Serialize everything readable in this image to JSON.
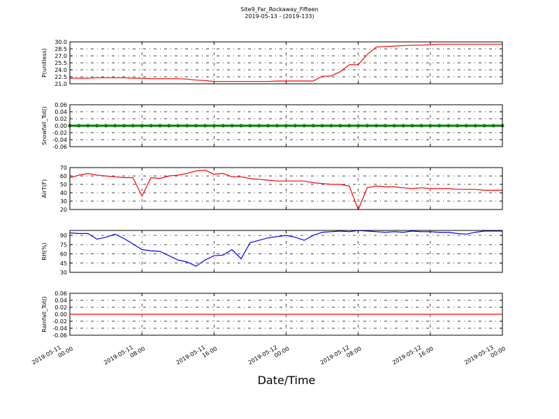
{
  "chart_data": [
    {
      "type": "line",
      "title": "Site9_Far_Rockaway_Fifteen",
      "subtitle": "2019-05-13 - (2019-133)",
      "ylabel": "P(unitless)",
      "color": "#ff0000",
      "grid": true,
      "x": [
        "2019-05-11 00:00",
        "2019-05-11 01:00",
        "2019-05-11 02:00",
        "2019-05-11 03:00",
        "2019-05-11 04:00",
        "2019-05-11 05:00",
        "2019-05-11 06:00",
        "2019-05-11 07:00",
        "2019-05-11 08:00",
        "2019-05-11 09:00",
        "2019-05-11 10:00",
        "2019-05-11 11:00",
        "2019-05-11 12:00",
        "2019-05-11 13:00",
        "2019-05-11 14:00",
        "2019-05-11 15:00",
        "2019-05-11 16:00",
        "2019-05-11 17:00",
        "2019-05-11 18:00",
        "2019-05-11 19:00",
        "2019-05-11 20:00",
        "2019-05-11 21:00",
        "2019-05-11 22:00",
        "2019-05-11 23:00",
        "2019-05-12 00:00",
        "2019-05-12 01:00",
        "2019-05-12 02:00",
        "2019-05-12 03:00",
        "2019-05-12 04:00",
        "2019-05-12 05:00",
        "2019-05-12 06:00",
        "2019-05-12 07:00",
        "2019-05-12 08:00",
        "2019-05-12 09:00",
        "2019-05-12 10:00",
        "2019-05-12 11:00",
        "2019-05-12 12:00",
        "2019-05-12 13:00",
        "2019-05-12 14:00",
        "2019-05-12 15:00",
        "2019-05-12 16:00",
        "2019-05-12 17:00",
        "2019-05-12 18:00",
        "2019-05-12 19:00",
        "2019-05-12 20:00",
        "2019-05-12 21:00",
        "2019-05-12 22:00",
        "2019-05-12 23:00",
        "2019-05-13 00:00"
      ],
      "values": [
        22.2,
        22.2,
        22.2,
        22.3,
        22.3,
        22.3,
        22.3,
        22.2,
        22.2,
        22.1,
        22.1,
        22.1,
        22.1,
        22.0,
        21.8,
        21.7,
        21.5,
        21.5,
        21.5,
        21.5,
        21.5,
        21.5,
        21.5,
        21.6,
        21.6,
        21.6,
        21.6,
        21.6,
        22.6,
        22.7,
        23.6,
        25.1,
        25.1,
        27.3,
        28.9,
        29.0,
        29.1,
        29.2,
        29.3,
        29.3,
        29.4,
        29.5,
        29.5,
        29.5,
        29.5,
        29.5,
        29.5,
        29.5,
        29.5
      ],
      "xlim": [
        "2019-05-11 00:00",
        "2019-05-13 00:00"
      ],
      "xticks": [
        "2019-05-11 00:00",
        "2019-05-11 08:00",
        "2019-05-11 16:00",
        "2019-05-12 00:00",
        "2019-05-12 08:00",
        "2019-05-12 16:00",
        "2019-05-13 00:00"
      ],
      "ylim": [
        21,
        30
      ],
      "yticks": [
        {
          "value": 21,
          "label": "21.0"
        },
        22.5,
        {
          "value": 24,
          "label": "24.0"
        },
        25.5,
        {
          "value": 27,
          "label": "27.0"
        },
        28.5,
        {
          "value": 30,
          "label": "30.0"
        }
      ]
    },
    {
      "type": "scatter",
      "ylabel": "Snowfall_Tot()",
      "color": "#008000",
      "grid": true,
      "x": [
        "2019-05-11 00:00",
        "2019-05-11 01:00",
        "2019-05-11 02:00",
        "2019-05-11 03:00",
        "2019-05-11 04:00",
        "2019-05-11 05:00",
        "2019-05-11 06:00",
        "2019-05-11 07:00",
        "2019-05-11 08:00",
        "2019-05-11 09:00",
        "2019-05-11 10:00",
        "2019-05-11 11:00",
        "2019-05-11 12:00",
        "2019-05-11 13:00",
        "2019-05-11 14:00",
        "2019-05-11 15:00",
        "2019-05-11 16:00",
        "2019-05-11 17:00",
        "2019-05-11 18:00",
        "2019-05-11 19:00",
        "2019-05-11 20:00",
        "2019-05-11 21:00",
        "2019-05-11 22:00",
        "2019-05-11 23:00",
        "2019-05-12 00:00",
        "2019-05-12 01:00",
        "2019-05-12 02:00",
        "2019-05-12 03:00",
        "2019-05-12 04:00",
        "2019-05-12 05:00",
        "2019-05-12 06:00",
        "2019-05-12 07:00",
        "2019-05-12 08:00",
        "2019-05-12 09:00",
        "2019-05-12 10:00",
        "2019-05-12 11:00",
        "2019-05-12 12:00",
        "2019-05-12 13:00",
        "2019-05-12 14:00",
        "2019-05-12 15:00",
        "2019-05-12 16:00",
        "2019-05-12 17:00",
        "2019-05-12 18:00",
        "2019-05-12 19:00",
        "2019-05-12 20:00",
        "2019-05-12 21:00",
        "2019-05-12 22:00",
        "2019-05-12 23:00",
        "2019-05-13 00:00"
      ],
      "values": [
        0,
        0,
        0,
        0,
        0,
        0,
        0,
        0,
        0,
        0,
        0,
        0,
        0,
        0,
        0,
        0,
        0,
        0,
        0,
        0,
        0,
        0,
        0,
        0,
        0,
        0,
        0,
        0,
        0,
        0,
        0,
        0,
        0,
        0,
        0,
        0,
        0,
        0,
        0,
        0,
        0,
        0,
        0,
        0,
        0,
        0,
        0,
        0,
        0
      ],
      "xlim": [
        "2019-05-11 00:00",
        "2019-05-13 00:00"
      ],
      "xticks": [
        "2019-05-11 00:00",
        "2019-05-11 08:00",
        "2019-05-11 16:00",
        "2019-05-12 00:00",
        "2019-05-12 08:00",
        "2019-05-12 16:00",
        "2019-05-13 00:00"
      ],
      "ylim": [
        -0.06,
        0.06
      ],
      "yticks": [
        -0.06,
        -0.04,
        -0.02,
        {
          "value": 0,
          "label": "0.00"
        },
        0.02,
        0.04,
        0.06
      ]
    },
    {
      "type": "line",
      "ylabel": "AirT(F)",
      "color": "#ff0000",
      "grid": true,
      "x": [
        "2019-05-11 00:00",
        "2019-05-11 01:00",
        "2019-05-11 02:00",
        "2019-05-11 03:00",
        "2019-05-11 04:00",
        "2019-05-11 05:00",
        "2019-05-11 06:00",
        "2019-05-11 07:00",
        "2019-05-11 08:00",
        "2019-05-11 09:00",
        "2019-05-11 10:00",
        "2019-05-11 11:00",
        "2019-05-11 12:00",
        "2019-05-11 13:00",
        "2019-05-11 14:00",
        "2019-05-11 15:00",
        "2019-05-11 16:00",
        "2019-05-11 17:00",
        "2019-05-11 18:00",
        "2019-05-11 19:00",
        "2019-05-11 20:00",
        "2019-05-11 21:00",
        "2019-05-11 22:00",
        "2019-05-11 23:00",
        "2019-05-12 00:00",
        "2019-05-12 01:00",
        "2019-05-12 02:00",
        "2019-05-12 03:00",
        "2019-05-12 04:00",
        "2019-05-12 05:00",
        "2019-05-12 06:00",
        "2019-05-12 07:00",
        "2019-05-12 08:00",
        "2019-05-12 09:00",
        "2019-05-12 10:00",
        "2019-05-12 11:00",
        "2019-05-12 12:00",
        "2019-05-12 13:00",
        "2019-05-12 14:00",
        "2019-05-12 15:00",
        "2019-05-12 16:00",
        "2019-05-12 17:00",
        "2019-05-12 18:00",
        "2019-05-12 19:00",
        "2019-05-12 20:00",
        "2019-05-12 21:00",
        "2019-05-12 22:00",
        "2019-05-12 23:00",
        "2019-05-13 00:00"
      ],
      "values": [
        58,
        61,
        63,
        61,
        60,
        59,
        58,
        58,
        36,
        58,
        57,
        60,
        61,
        63,
        66,
        67,
        62,
        63,
        59,
        59,
        57,
        56,
        55,
        54,
        54,
        54,
        54,
        52,
        51,
        50,
        50,
        48,
        20,
        46,
        48,
        47,
        47,
        46,
        45,
        46,
        45,
        45,
        45,
        44,
        44,
        44,
        43,
        43,
        43
      ],
      "xlim": [
        "2019-05-11 00:00",
        "2019-05-13 00:00"
      ],
      "xticks": [
        "2019-05-11 00:00",
        "2019-05-11 08:00",
        "2019-05-11 16:00",
        "2019-05-12 00:00",
        "2019-05-12 08:00",
        "2019-05-12 16:00",
        "2019-05-13 00:00"
      ],
      "ylim": [
        20,
        70
      ],
      "yticks": [
        20,
        30,
        40,
        50,
        60,
        70
      ]
    },
    {
      "type": "line",
      "ylabel": "RH(%)",
      "color": "#0000ff",
      "grid": true,
      "x": [
        "2019-05-11 00:00",
        "2019-05-11 01:00",
        "2019-05-11 02:00",
        "2019-05-11 03:00",
        "2019-05-11 04:00",
        "2019-05-11 05:00",
        "2019-05-11 06:00",
        "2019-05-11 07:00",
        "2019-05-11 08:00",
        "2019-05-11 09:00",
        "2019-05-11 10:00",
        "2019-05-11 11:00",
        "2019-05-11 12:00",
        "2019-05-11 13:00",
        "2019-05-11 14:00",
        "2019-05-11 15:00",
        "2019-05-11 16:00",
        "2019-05-11 17:00",
        "2019-05-11 18:00",
        "2019-05-11 19:00",
        "2019-05-11 20:00",
        "2019-05-11 21:00",
        "2019-05-11 22:00",
        "2019-05-11 23:00",
        "2019-05-12 00:00",
        "2019-05-12 01:00",
        "2019-05-12 02:00",
        "2019-05-12 03:00",
        "2019-05-12 04:00",
        "2019-05-12 05:00",
        "2019-05-12 06:00",
        "2019-05-12 07:00",
        "2019-05-12 08:00",
        "2019-05-12 09:00",
        "2019-05-12 10:00",
        "2019-05-12 11:00",
        "2019-05-12 12:00",
        "2019-05-12 13:00",
        "2019-05-12 14:00",
        "2019-05-12 15:00",
        "2019-05-12 16:00",
        "2019-05-12 17:00",
        "2019-05-12 18:00",
        "2019-05-12 19:00",
        "2019-05-12 20:00",
        "2019-05-12 21:00",
        "2019-05-12 22:00",
        "2019-05-12 23:00",
        "2019-05-13 00:00"
      ],
      "values": [
        94,
        93,
        93,
        84,
        87,
        92,
        85,
        76,
        67,
        65,
        64,
        57,
        50,
        47,
        40,
        50,
        57,
        58,
        67,
        52,
        78,
        82,
        86,
        88,
        90,
        87,
        82,
        90,
        95,
        96,
        97,
        96,
        98,
        97,
        96,
        95,
        96,
        95,
        97,
        96,
        96,
        95,
        95,
        93,
        92,
        95,
        97,
        97,
        97
      ],
      "xlim": [
        "2019-05-11 00:00",
        "2019-05-13 00:00"
      ],
      "xticks": [
        "2019-05-11 00:00",
        "2019-05-11 08:00",
        "2019-05-11 16:00",
        "2019-05-12 00:00",
        "2019-05-12 08:00",
        "2019-05-12 16:00",
        "2019-05-13 00:00"
      ],
      "ylim": [
        30,
        98
      ],
      "yticks": [
        30,
        45,
        60,
        75,
        90
      ]
    },
    {
      "type": "line",
      "ylabel": "Rainfall_Tot()",
      "xlabel": "Date/Time",
      "color": "#ff0000",
      "grid": true,
      "x": [
        "2019-05-11 00:00",
        "2019-05-11 01:00",
        "2019-05-11 02:00",
        "2019-05-11 03:00",
        "2019-05-11 04:00",
        "2019-05-11 05:00",
        "2019-05-11 06:00",
        "2019-05-11 07:00",
        "2019-05-11 08:00",
        "2019-05-11 09:00",
        "2019-05-11 10:00",
        "2019-05-11 11:00",
        "2019-05-11 12:00",
        "2019-05-11 13:00",
        "2019-05-11 14:00",
        "2019-05-11 15:00",
        "2019-05-11 16:00",
        "2019-05-11 17:00",
        "2019-05-11 18:00",
        "2019-05-11 19:00",
        "2019-05-11 20:00",
        "2019-05-11 21:00",
        "2019-05-11 22:00",
        "2019-05-11 23:00",
        "2019-05-12 00:00",
        "2019-05-12 01:00",
        "2019-05-12 02:00",
        "2019-05-12 03:00",
        "2019-05-12 04:00",
        "2019-05-12 05:00",
        "2019-05-12 06:00",
        "2019-05-12 07:00",
        "2019-05-12 08:00",
        "2019-05-12 09:00",
        "2019-05-12 10:00",
        "2019-05-12 11:00",
        "2019-05-12 12:00",
        "2019-05-12 13:00",
        "2019-05-12 14:00",
        "2019-05-12 15:00",
        "2019-05-12 16:00",
        "2019-05-12 17:00",
        "2019-05-12 18:00",
        "2019-05-12 19:00",
        "2019-05-12 20:00",
        "2019-05-12 21:00",
        "2019-05-12 22:00",
        "2019-05-12 23:00",
        "2019-05-13 00:00"
      ],
      "values": [
        0,
        0,
        0,
        0,
        0,
        0,
        0,
        0,
        0,
        0,
        0,
        0,
        0,
        0,
        0,
        0,
        0,
        0,
        0,
        0,
        0,
        0,
        0,
        0,
        0,
        0,
        0,
        0,
        0,
        0,
        0,
        0,
        0,
        0,
        0,
        0,
        0,
        0,
        0,
        0,
        0,
        0,
        0,
        0,
        0,
        0,
        0,
        0,
        0
      ],
      "xlim": [
        "2019-05-11 00:00",
        "2019-05-13 00:00"
      ],
      "xticks": [
        "2019-05-11 00:00",
        "2019-05-11 08:00",
        "2019-05-11 16:00",
        "2019-05-12 00:00",
        "2019-05-12 08:00",
        "2019-05-12 16:00",
        "2019-05-13 00:00"
      ],
      "ylim": [
        -0.06,
        0.06
      ],
      "yticks": [
        -0.06,
        -0.04,
        -0.02,
        {
          "value": 0,
          "label": "0.00"
        },
        0.02,
        0.04,
        0.06
      ]
    }
  ]
}
